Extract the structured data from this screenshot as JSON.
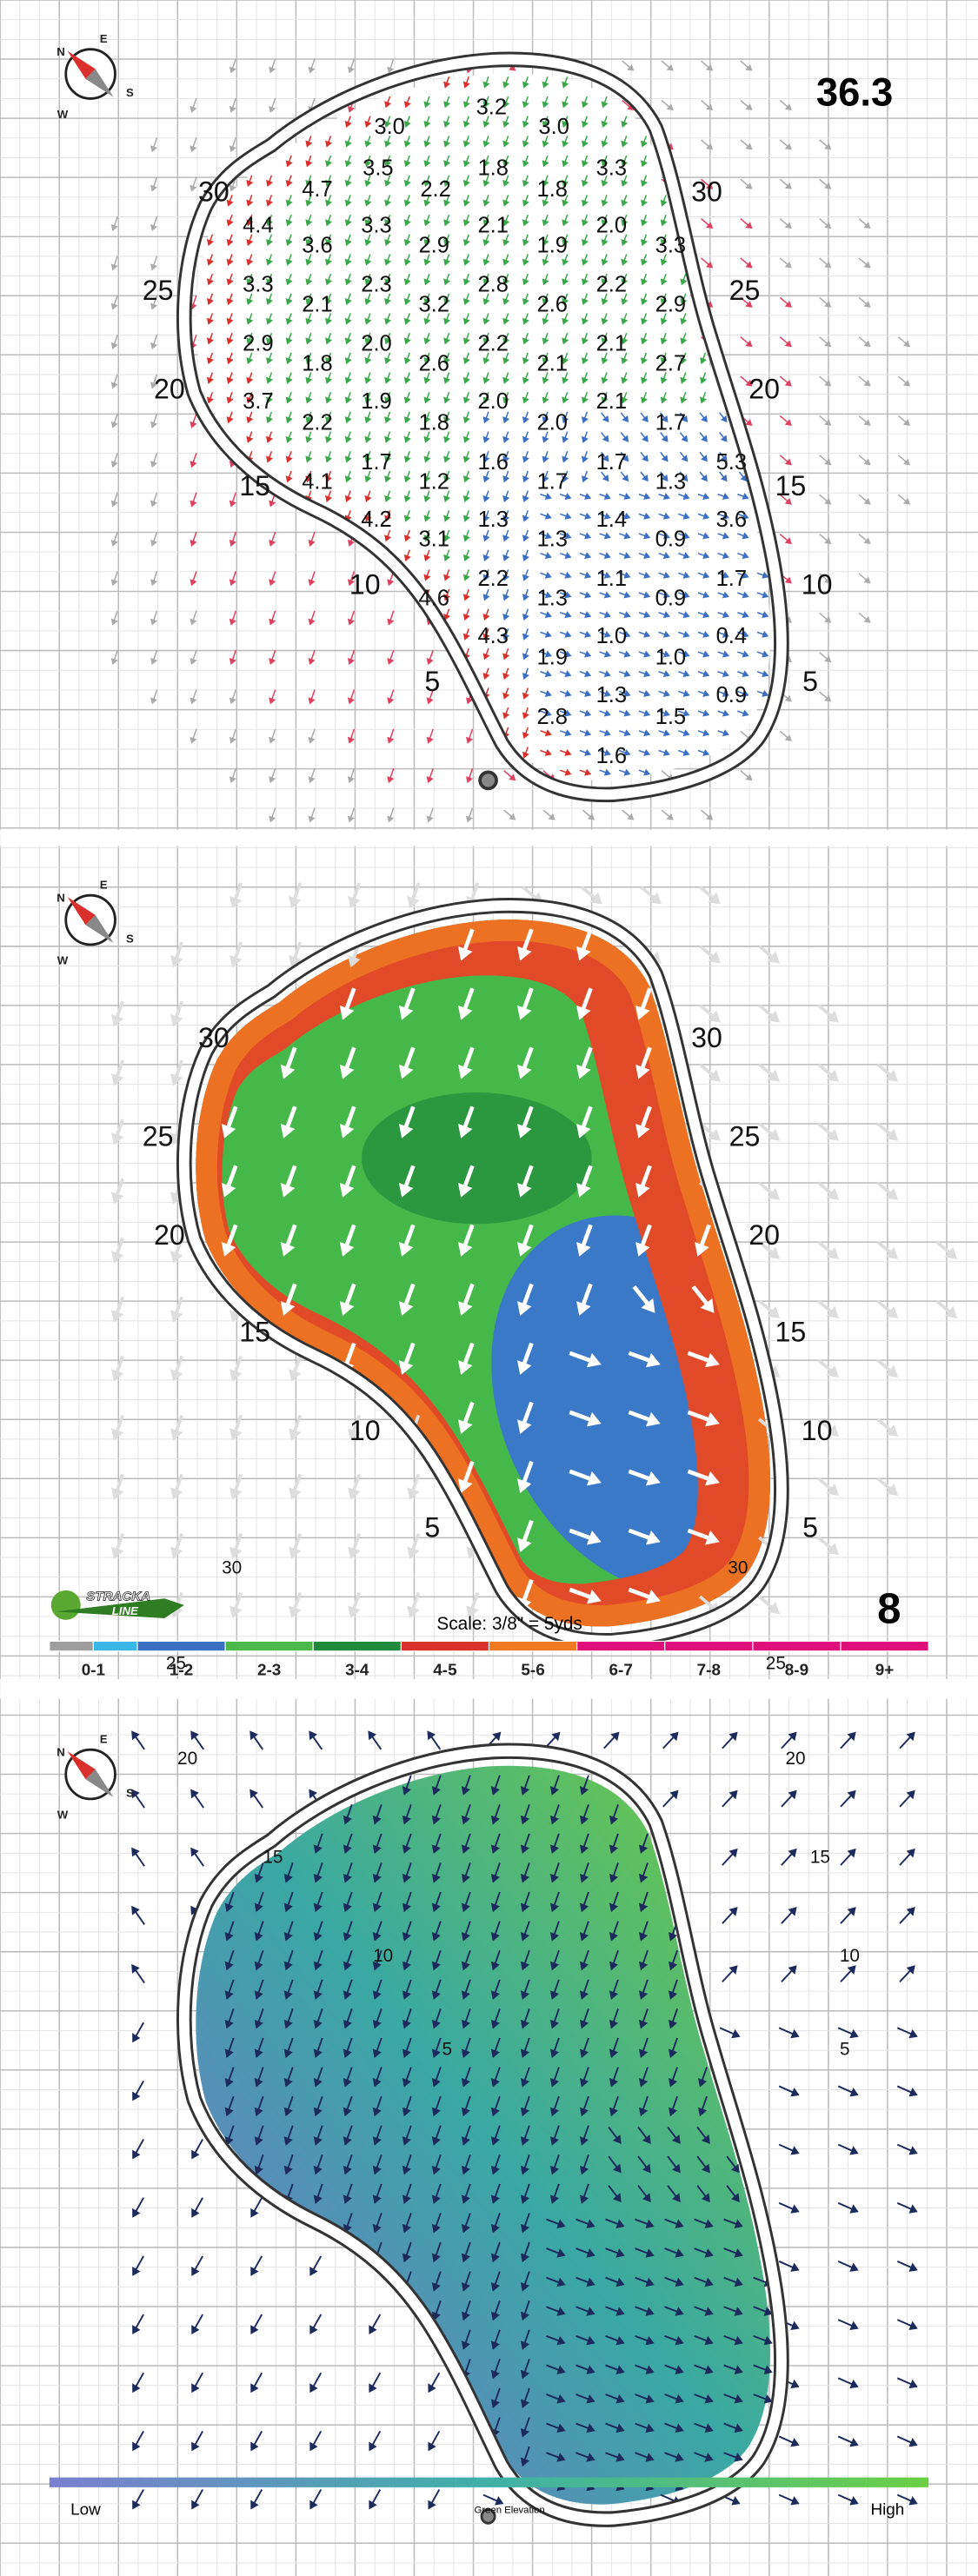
{
  "compass": [
    "N",
    "E",
    "S",
    "W"
  ],
  "yardages": [
    "30",
    "25",
    "20",
    "15",
    "10",
    "5"
  ],
  "panel1": {
    "score": "36.3",
    "slopes": [
      "3.2",
      "3.0",
      "3.0",
      "3.5",
      "1.8",
      "3.3",
      "4.7",
      "2.2",
      "1.8",
      "4.4",
      "3.3",
      "2.1",
      "2.0",
      "3.6",
      "2.9",
      "1.9",
      "3.3",
      "3.3",
      "2.3",
      "2.8",
      "2.2",
      "2.1",
      "3.2",
      "2.6",
      "2.9",
      "2.9",
      "2.0",
      "2.2",
      "2.1",
      "1.8",
      "2.6",
      "2.1",
      "2.7",
      "3.7",
      "1.9",
      "2.0",
      "2.1",
      "2.2",
      "1.8",
      "2.0",
      "1.7",
      "1.7",
      "1.6",
      "1.7",
      "5.3",
      "4.1",
      "1.2",
      "1.7",
      "1.3",
      "4.2",
      "1.3",
      "1.4",
      "3.6",
      "3.1",
      "1.3",
      "0.9",
      "2.2",
      "1.1",
      "1.7",
      "4.6",
      "1.3",
      "0.9",
      "4.3",
      "1.0",
      "0.4",
      "1.9",
      "1.0",
      "1.3",
      "0.9",
      "2.8",
      "1.5",
      "1.6"
    ]
  },
  "panel2": {
    "hole": "8",
    "scale": "Scale: 3/8\" = 5yds",
    "logo": [
      "STRACKA",
      "LINE"
    ],
    "legend": [
      {
        "label": "0-1",
        "colors": [
          "#9e9e9e",
          "#3ab7e8"
        ]
      },
      {
        "label": "1-2",
        "colors": [
          "#3a6fc4"
        ]
      },
      {
        "label": "2-3",
        "colors": [
          "#4cb84a"
        ]
      },
      {
        "label": "3-4",
        "colors": [
          "#1f8a3c"
        ]
      },
      {
        "label": "4-5",
        "colors": [
          "#d9302c"
        ]
      },
      {
        "label": "5-6",
        "colors": [
          "#f07a22"
        ]
      },
      {
        "label": "6-7",
        "colors": [
          "#e0107a"
        ]
      },
      {
        "label": "7-8",
        "colors": [
          "#e0107a"
        ]
      },
      {
        "label": "8-9",
        "colors": [
          "#e0107a"
        ]
      },
      {
        "label": "9+",
        "colors": [
          "#e0107a"
        ]
      }
    ]
  },
  "panel3": {
    "low": "Low",
    "title": "Green Elevation",
    "high": "High"
  }
}
